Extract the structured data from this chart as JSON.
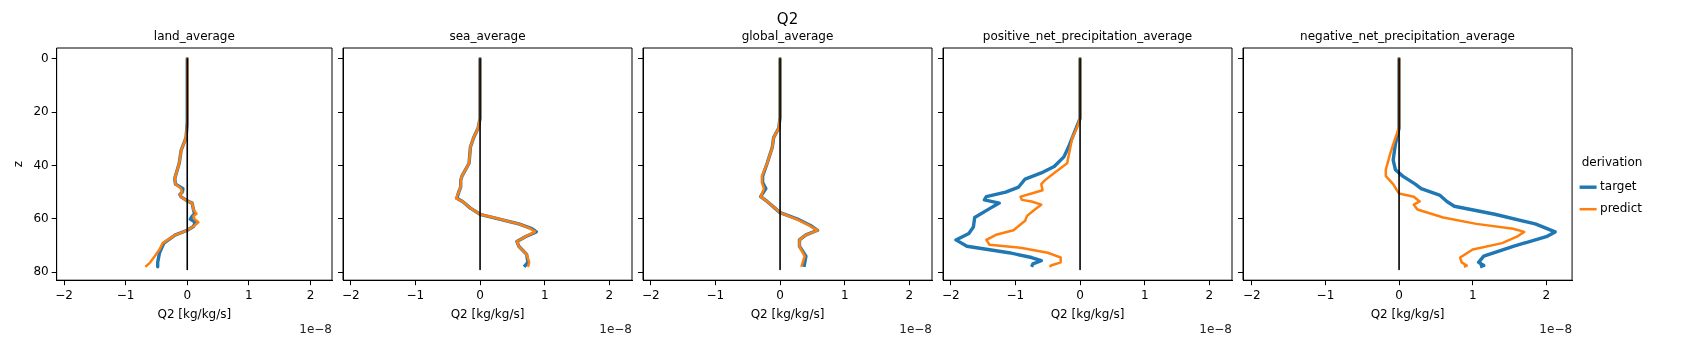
{
  "chart_data": [
    {
      "type": "line",
      "title": "land_average",
      "xlabel": "Q2 [kg/kg/s]",
      "ylabel": "z",
      "annotations": [
        "1e−8"
      ],
      "xlim": [
        -2.12,
        2.35
      ],
      "xticks": [
        -2,
        -1,
        0,
        1,
        2
      ],
      "ylim": [
        83,
        -4
      ],
      "yticks": [
        0,
        20,
        40,
        60,
        80
      ],
      "marker": "none",
      "legend": false,
      "series": [
        {
          "color": "#1f77b4",
          "x": [
            0,
            0,
            -0.02,
            -0.1,
            -0.13,
            -0.2,
            -0.2,
            -0.19,
            -0.07,
            -0.08,
            -0.12,
            -0.1,
            0,
            0.08,
            0.1,
            0.12,
            0.08,
            0.05,
            0.13,
            0.1,
            0,
            -0.2,
            -0.38,
            -0.45,
            -0.48,
            -0.48
          ],
          "values": [
            0,
            24,
            29.6,
            34.4,
            39.2,
            44.6,
            45.7,
            47,
            48.7,
            50,
            50.9,
            51.8,
            53.3,
            54.1,
            56.5,
            58.1,
            59,
            60.1,
            61.3,
            62.9,
            64.3,
            66.1,
            69.1,
            72.7,
            76.3,
            78
          ]
        },
        {
          "color": "#ff7f0e",
          "x": [
            0,
            0,
            -0.02,
            -0.1,
            -0.13,
            -0.2,
            -0.2,
            -0.19,
            -0.1,
            -0.08,
            -0.12,
            -0.1,
            0,
            0.08,
            0.1,
            0.15,
            0.1,
            0.12,
            0.18,
            0.1,
            0,
            -0.2,
            -0.4,
            -0.45,
            -0.6,
            -0.68
          ],
          "values": [
            0,
            24,
            29.6,
            34.4,
            39.2,
            44.6,
            45.7,
            47,
            48.7,
            50,
            50.9,
            51.8,
            53.3,
            54.1,
            56.5,
            58.1,
            59,
            60.1,
            61.3,
            62.9,
            64.3,
            66.1,
            69.1,
            71.5,
            76.3,
            78
          ]
        },
        {
          "color": "#000000",
          "x": [
            0,
            0
          ],
          "values": [
            0,
            79
          ]
        }
      ]
    },
    {
      "type": "line",
      "title": "sea_average",
      "xlabel": "Q2 [kg/kg/s]",
      "annotations": [
        "1e−8"
      ],
      "xlim": [
        -2.12,
        2.35
      ],
      "xticks": [
        -2,
        -1,
        0,
        1,
        2
      ],
      "ylim": [
        83,
        -4
      ],
      "yticks": [
        0,
        20,
        40,
        60,
        80
      ],
      "tick_labels": "x",
      "marker": "none",
      "legend": false,
      "series": [
        {
          "color": "#1f77b4",
          "x": [
            0,
            0,
            -0.03,
            -0.1,
            -0.15,
            -0.17,
            -0.28,
            -0.3,
            -0.3,
            -0.33,
            -0.36,
            -0.27,
            -0.15,
            0,
            0.3,
            0.6,
            0.8,
            0.87,
            0.7,
            0.57,
            0.6,
            0.72,
            0.74,
            0.68
          ],
          "values": [
            0,
            22.4,
            26,
            29.6,
            33.2,
            39.2,
            44,
            45.7,
            48.1,
            50,
            52.3,
            53.5,
            56,
            58.3,
            60.1,
            61.9,
            63.7,
            64.9,
            66.7,
            68.5,
            70.3,
            73.3,
            76.3,
            78
          ]
        },
        {
          "color": "#ff7f0e",
          "x": [
            0,
            0,
            -0.03,
            -0.1,
            -0.15,
            -0.17,
            -0.28,
            -0.3,
            -0.3,
            -0.33,
            -0.37,
            -0.27,
            -0.15,
            0,
            0.3,
            0.6,
            0.78,
            0.85,
            0.7,
            0.57,
            0.6,
            0.72,
            0.76,
            0.74
          ],
          "values": [
            0,
            22.4,
            26,
            29.6,
            33.2,
            39.2,
            44,
            45.7,
            48.1,
            50,
            52.3,
            53.5,
            56,
            58.3,
            60.1,
            61.9,
            63.7,
            64.9,
            66.7,
            68.5,
            70.3,
            73.3,
            76.3,
            78
          ]
        },
        {
          "color": "#000000",
          "x": [
            0,
            0
          ],
          "values": [
            0,
            79
          ]
        }
      ]
    },
    {
      "type": "line",
      "title": "Q2",
      "subtitle": "global_average",
      "xlabel": "Q2 [kg/kg/s]",
      "annotations": [
        "1e−8"
      ],
      "xlim": [
        -2.12,
        2.35
      ],
      "xticks": [
        -2,
        -1,
        0,
        1,
        2
      ],
      "ylim": [
        83,
        -4
      ],
      "yticks": [
        0,
        20,
        40,
        60,
        80
      ],
      "tick_labels": "x",
      "marker": "none",
      "legend": false,
      "series": [
        {
          "color": "#1f77b4",
          "x": [
            0,
            0,
            -0.02,
            -0.1,
            -0.12,
            -0.2,
            -0.27,
            -0.27,
            -0.22,
            -0.27,
            -0.3,
            -0.2,
            -0.08,
            0,
            0.27,
            0.47,
            0.58,
            0.4,
            0.3,
            0.3,
            0.4,
            0.37
          ],
          "values": [
            0,
            22,
            26,
            29.6,
            33.2,
            39.2,
            44,
            46.4,
            48.7,
            50.5,
            51.7,
            53.5,
            56,
            57.7,
            60.1,
            62.5,
            64.3,
            66,
            67.9,
            70.3,
            74,
            78
          ]
        },
        {
          "color": "#ff7f0e",
          "x": [
            0,
            0,
            -0.02,
            -0.1,
            -0.12,
            -0.2,
            -0.28,
            -0.28,
            -0.25,
            -0.28,
            -0.3,
            -0.2,
            -0.08,
            0,
            0.25,
            0.45,
            0.58,
            0.4,
            0.3,
            0.3,
            0.38,
            0.33
          ],
          "values": [
            0,
            22,
            26,
            29.6,
            33.2,
            39.2,
            44,
            46.4,
            48.7,
            50.5,
            51.7,
            53.5,
            56,
            57.7,
            60.1,
            62.5,
            64.3,
            66,
            67.9,
            70.3,
            74,
            78
          ]
        },
        {
          "color": "#000000",
          "x": [
            0,
            0
          ],
          "values": [
            0,
            79
          ]
        }
      ]
    },
    {
      "type": "line",
      "title": "positive_net_precipitation_average",
      "xlabel": "Q2 [kg/kg/s]",
      "annotations": [
        "1e−8"
      ],
      "xlim": [
        -2.12,
        2.35
      ],
      "xticks": [
        -2,
        -1,
        0,
        1,
        2
      ],
      "ylim": [
        83,
        -4
      ],
      "yticks": [
        0,
        20,
        40,
        60,
        80
      ],
      "tick_labels": "x",
      "marker": "none",
      "legend": false,
      "series": [
        {
          "color": "#1f77b4",
          "x": [
            0,
            0,
            -0.12,
            -0.18,
            -0.25,
            -0.4,
            -0.6,
            -0.85,
            -0.95,
            -1.15,
            -1.45,
            -1.48,
            -1.25,
            -1.38,
            -1.63,
            -1.65,
            -1.72,
            -1.92,
            -1.75,
            -1.1,
            -0.75,
            -0.6,
            -0.73,
            -0.75
          ],
          "values": [
            0,
            22.4,
            29.6,
            33.2,
            36.8,
            40.4,
            42.8,
            45.1,
            48.1,
            50,
            51.7,
            52.9,
            54.1,
            55.9,
            59.5,
            63.1,
            65.5,
            67.9,
            70.3,
            72.7,
            74.5,
            75.7,
            76.9,
            78
          ]
        },
        {
          "color": "#ff7f0e",
          "x": [
            0,
            0,
            -0.05,
            -0.12,
            -0.15,
            -0.2,
            -0.4,
            -0.55,
            -0.6,
            -0.58,
            -0.75,
            -0.92,
            -0.9,
            -0.75,
            -0.6,
            -0.7,
            -0.82,
            -0.85,
            -1.03,
            -1.3,
            -1.45,
            -1.4,
            -0.9,
            -0.5,
            -0.3,
            -0.3,
            -0.45,
            -0.47
          ],
          "values": [
            0,
            22.4,
            26,
            29.6,
            33.2,
            39.2,
            42.8,
            45.7,
            47,
            49.3,
            50.5,
            51.7,
            52.9,
            53.5,
            54.7,
            56.5,
            58.9,
            60.7,
            64.3,
            66,
            67.9,
            69.7,
            70.9,
            72.7,
            74.5,
            76.3,
            77.5,
            78
          ]
        },
        {
          "color": "#000000",
          "x": [
            0,
            0
          ],
          "values": [
            0,
            79
          ]
        }
      ]
    },
    {
      "type": "line",
      "title": "negative_net_precipitation_average",
      "xlabel": "Q2 [kg/kg/s]",
      "legend_title": "derivation",
      "annotations": [
        "1e−8"
      ],
      "xlim": [
        -2.12,
        2.35
      ],
      "xticks": [
        -2,
        -1,
        0,
        1,
        2
      ],
      "ylim": [
        83,
        -4
      ],
      "yticks": [
        0,
        20,
        40,
        60,
        80
      ],
      "tick_labels": "x",
      "marker": "none",
      "legend": "right",
      "series": [
        {
          "name": "target",
          "color": "#1f77b4",
          "x": [
            0,
            0,
            -0.05,
            -0.08,
            -0.05,
            0.05,
            0.22,
            0.3,
            0.55,
            0.65,
            0.75,
            1.3,
            1.85,
            2.12,
            2.0,
            1.55,
            1.15,
            1.08,
            1.15,
            1.1
          ],
          "values": [
            0,
            26,
            32,
            38,
            41.6,
            44,
            47,
            48.7,
            51.1,
            53.5,
            55.3,
            58.3,
            61.9,
            64.9,
            66.7,
            70.3,
            74,
            76.3,
            77.5,
            78
          ]
        },
        {
          "name": "predict",
          "color": "#ff7f0e",
          "x": [
            0,
            0,
            -0.05,
            -0.12,
            -0.18,
            -0.18,
            -0.08,
            -0.03,
            0,
            0.2,
            0.28,
            0.2,
            0.25,
            0.6,
            1.05,
            1.55,
            1.7,
            1.6,
            1.4,
            1.0,
            0.83,
            0.85,
            0.92,
            0.88
          ],
          "values": [
            0,
            26,
            29.6,
            35.6,
            41.6,
            44,
            47,
            49.3,
            50.5,
            51.7,
            53.5,
            54.7,
            56.5,
            59.5,
            61.9,
            63.7,
            64.9,
            66.7,
            69.1,
            71.5,
            74.5,
            76.3,
            77.5,
            78
          ]
        },
        {
          "color": "#000000",
          "x": [
            0,
            0
          ],
          "values": [
            0,
            79
          ]
        }
      ]
    }
  ]
}
